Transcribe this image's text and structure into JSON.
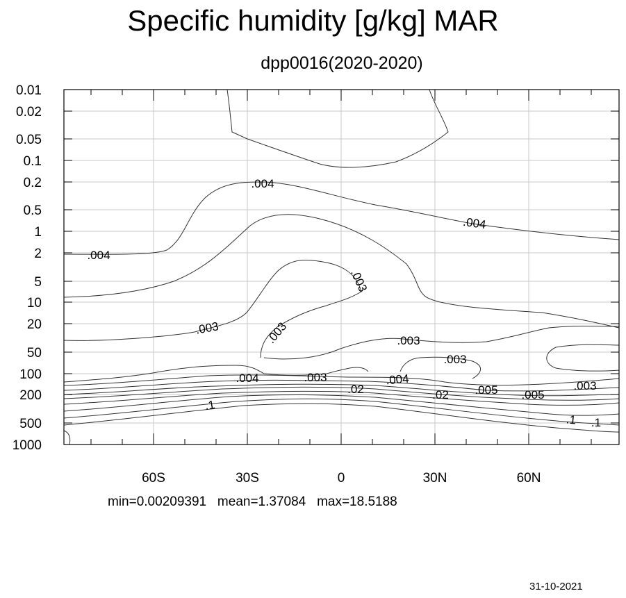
{
  "chart_data": {
    "type": "contour",
    "title": "Specific humidity [g/kg] MAR",
    "subtitle": "dpp0016(2020-2020)",
    "xlabel": "",
    "ylabel": "",
    "x_tick_labels": [
      "60S",
      "30S",
      "0",
      "30N",
      "60N"
    ],
    "x_ticks_lat": [
      -60,
      -30,
      0,
      30,
      60
    ],
    "xlim_lat": [
      -89,
      89
    ],
    "y_tick_labels": [
      "0.01",
      "0.02",
      "0.05",
      "0.1",
      "0.2",
      "0.5",
      "1",
      "2",
      "5",
      "10",
      "20",
      "50",
      "100",
      "200",
      "500",
      "1000"
    ],
    "y_scale": "log",
    "ylim_hpa": [
      0.01,
      1000
    ],
    "y_inverted": true,
    "grid": true,
    "contour_labels": [
      ".004",
      ".004",
      ".004",
      ".003",
      ".003",
      ".003",
      ".003",
      ".003",
      ".004",
      ".003",
      ".004",
      ".02",
      ".02",
      ".005",
      ".005",
      ".003",
      ".1",
      ".1",
      ".1"
    ],
    "stats": {
      "min": "0.00209391",
      "mean": "1.37084",
      "max": "18.5188"
    }
  },
  "stats_text": "min=0.00209391   mean=1.37084   max=18.5188",
  "date": "31-10-2021"
}
